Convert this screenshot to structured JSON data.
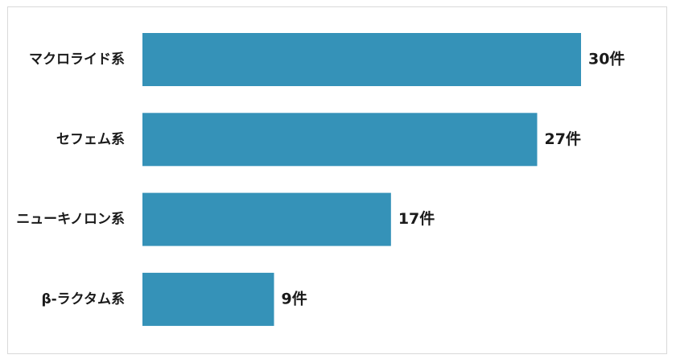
{
  "chart_data": {
    "type": "bar",
    "orientation": "horizontal",
    "categories": [
      "マクロライド系",
      "セフェム系",
      "ニューキノロン系",
      "β-ラクタム系"
    ],
    "values": [
      30,
      27,
      17,
      9
    ],
    "value_labels": [
      "30件",
      "27件",
      "17件",
      "9件"
    ],
    "unit": "件",
    "title": "",
    "xlabel": "",
    "ylabel": "",
    "xlim": [
      0,
      30
    ],
    "grid": false,
    "legend": "none",
    "bar_color": "#3592b8"
  }
}
